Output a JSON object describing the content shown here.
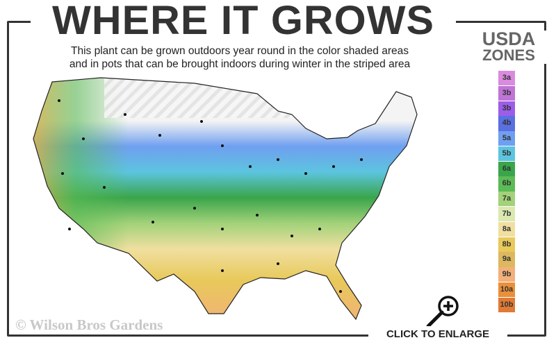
{
  "title": "WHERE IT GROWS",
  "subtitle": [
    "This plant can be grown outdoors year round in the color shaded areas",
    "and in pots that can be brought indoors during winter in the striped area"
  ],
  "legend": {
    "title_line1": "USDA",
    "title_line2": "ZONES",
    "zones": [
      {
        "label": "3a",
        "color": "#d98be0"
      },
      {
        "label": "3b",
        "color": "#c074d6"
      },
      {
        "label": "3b",
        "color": "#9b5ee8"
      },
      {
        "label": "4b",
        "color": "#5a6fe0"
      },
      {
        "label": "5a",
        "color": "#6f9ff0"
      },
      {
        "label": "5b",
        "color": "#5cc4df"
      },
      {
        "label": "6a",
        "color": "#3aa54a"
      },
      {
        "label": "6b",
        "color": "#5bbb55"
      },
      {
        "label": "7a",
        "color": "#a3d27a"
      },
      {
        "label": "7b",
        "color": "#dbe8b0"
      },
      {
        "label": "8a",
        "color": "#f0dfa0"
      },
      {
        "label": "8b",
        "color": "#e8c95a"
      },
      {
        "label": "9a",
        "color": "#ddb860"
      },
      {
        "label": "9b",
        "color": "#f2b07a"
      },
      {
        "label": "10a",
        "color": "#ea8f3a"
      },
      {
        "label": "10b",
        "color": "#e07a35"
      }
    ]
  },
  "watermark": "© Wilson Bros Gardens",
  "enlarge_label": "CLICK TO ENLARGE"
}
